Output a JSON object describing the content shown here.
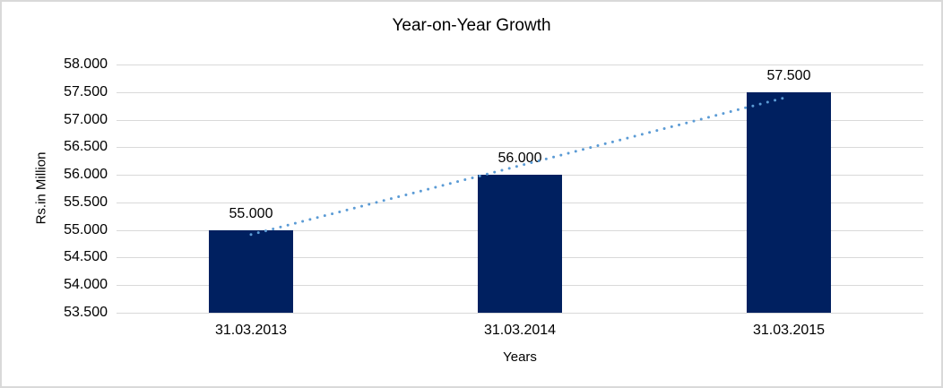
{
  "chart": {
    "title": "Year-on-Year Growth",
    "y_axis_title": "Rs.in Million",
    "x_axis_title": "Years"
  },
  "chart_data": {
    "type": "bar",
    "title": "Year-on-Year Growth",
    "xlabel": "Years",
    "ylabel": "Rs.in Million",
    "categories": [
      "31.03.2013",
      "31.03.2014",
      "31.03.2015"
    ],
    "values": [
      55000,
      56000,
      57500
    ],
    "data_labels": [
      "55.000",
      "56.000",
      "57.500"
    ],
    "y_tick_values": [
      53500,
      54000,
      54500,
      55000,
      55500,
      56000,
      56500,
      57000,
      57500,
      58000
    ],
    "y_tick_labels": [
      "53.500",
      "54.000",
      "54.500",
      "55.000",
      "55.500",
      "56.000",
      "56.500",
      "57.000",
      "57.500",
      "58.000"
    ],
    "ylim": [
      53500,
      58000
    ],
    "grid": true,
    "legend": false,
    "trendline": {
      "type": "linear",
      "style": "dotted"
    },
    "colors": {
      "bar": "#002060",
      "trend": "#5b9bd5",
      "gridline": "#d9d9d9",
      "text": "#000000",
      "frame_border": "#d9d9d9"
    }
  }
}
